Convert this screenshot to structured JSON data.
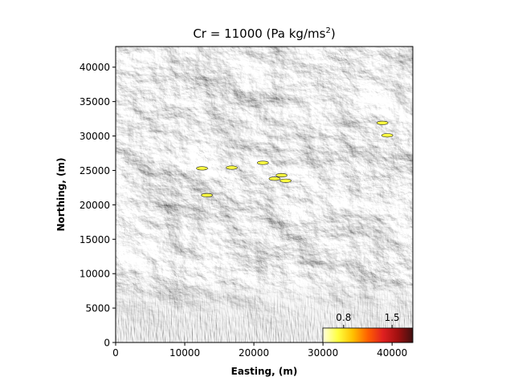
{
  "chart_data": {
    "type": "heatmap",
    "title_main": "Cr = 11000 (Pa kg/ms",
    "title_sup": "2",
    "title_tail": ")",
    "xlabel": "Easting, (m)",
    "ylabel": "Northing, (m)",
    "xlim": [
      0,
      43000
    ],
    "ylim": [
      0,
      43000
    ],
    "xticks": [
      0,
      10000,
      20000,
      30000,
      40000
    ],
    "yticks": [
      0,
      5000,
      10000,
      15000,
      20000,
      25000,
      30000,
      35000,
      40000
    ],
    "background": "shaded-relief terrain (grayscale)",
    "colorbar": {
      "ticks": [
        0.8,
        1.5
      ],
      "range": [
        0.5,
        1.8
      ],
      "placement": "bottom-right inset",
      "colors": [
        "#ffffe0",
        "#ffff40",
        "#ffc000",
        "#ff6000",
        "#e02020",
        "#a01010",
        "#401010"
      ]
    },
    "hotspots": [
      {
        "x": 12500,
        "y": 25300,
        "level": 0.75
      },
      {
        "x": 13200,
        "y": 21400,
        "level": 0.75
      },
      {
        "x": 16800,
        "y": 25400,
        "level": 0.7
      },
      {
        "x": 21300,
        "y": 26100,
        "level": 0.7
      },
      {
        "x": 23000,
        "y": 23800,
        "level": 0.7
      },
      {
        "x": 24000,
        "y": 24300,
        "level": 0.7
      },
      {
        "x": 24600,
        "y": 23500,
        "level": 0.7
      },
      {
        "x": 39300,
        "y": 30100,
        "level": 0.7
      },
      {
        "x": 38600,
        "y": 31900,
        "level": 0.7
      }
    ]
  }
}
